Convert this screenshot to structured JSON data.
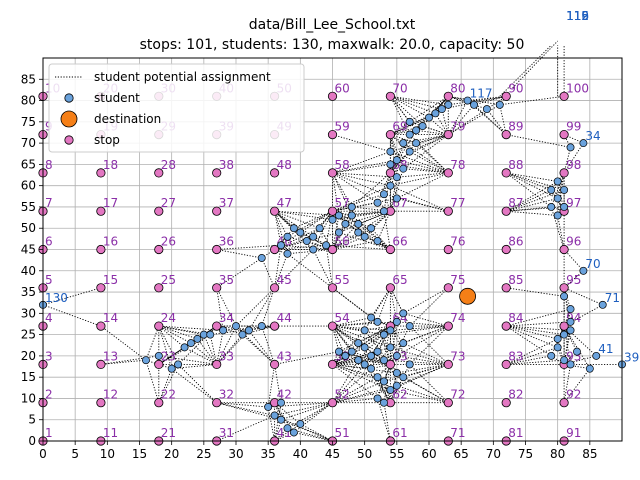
{
  "chart_data": {
    "type": "scatter",
    "title": "data/Bill_Lee_School.txt",
    "subtitle": "stops: 101, students: 130, maxwalk: 20.0, capacity: 50",
    "xlabel": "",
    "ylabel": "",
    "xlim": [
      0,
      90
    ],
    "ylim": [
      0,
      90
    ],
    "xticks": [
      0,
      5,
      10,
      15,
      20,
      25,
      30,
      35,
      40,
      45,
      50,
      55,
      60,
      65,
      70,
      75,
      80,
      85
    ],
    "yticks": [
      0,
      5,
      10,
      15,
      20,
      25,
      30,
      35,
      40,
      45,
      50,
      55,
      60,
      65,
      70,
      75,
      80,
      85
    ],
    "grid": true,
    "legend_position": "top-left",
    "legend": [
      {
        "label": "student potential assignment",
        "kind": "dotted-line",
        "color": "#000000"
      },
      {
        "label": "student",
        "kind": "marker",
        "color": "#6aa2dc"
      },
      {
        "label": "destination",
        "kind": "marker",
        "color": "#f57f17"
      },
      {
        "label": "stop",
        "kind": "marker",
        "color": "#e377c2"
      }
    ],
    "colors": {
      "stop": "#e377c2",
      "student": "#6aa2dc",
      "destination": "#f57f17",
      "stop_label": "#8b2fa8",
      "student_label": "#1f5fbf",
      "edge": "#000000"
    },
    "destination": {
      "x": 66,
      "y": 34
    },
    "stops": [
      {
        "id": "1",
        "x": 0,
        "y": 0
      },
      {
        "id": "2",
        "x": 0,
        "y": 9
      },
      {
        "id": "3",
        "x": 0,
        "y": 18
      },
      {
        "id": "4",
        "x": 0,
        "y": 27
      },
      {
        "id": "5",
        "x": 0,
        "y": 36
      },
      {
        "id": "6",
        "x": 0,
        "y": 45
      },
      {
        "id": "7",
        "x": 0,
        "y": 54
      },
      {
        "id": "8",
        "x": 0,
        "y": 63
      },
      {
        "id": "9",
        "x": 0,
        "y": 72
      },
      {
        "id": "10",
        "x": 0,
        "y": 81
      },
      {
        "id": "11",
        "x": 9,
        "y": 0
      },
      {
        "id": "12",
        "x": 9,
        "y": 9
      },
      {
        "id": "13",
        "x": 9,
        "y": 18
      },
      {
        "id": "14",
        "x": 9,
        "y": 27
      },
      {
        "id": "15",
        "x": 9,
        "y": 36
      },
      {
        "id": "16",
        "x": 9,
        "y": 45
      },
      {
        "id": "17",
        "x": 9,
        "y": 54
      },
      {
        "id": "18",
        "x": 9,
        "y": 63
      },
      {
        "id": "19",
        "x": 9,
        "y": 72
      },
      {
        "id": "20",
        "x": 9,
        "y": 81
      },
      {
        "id": "21",
        "x": 18,
        "y": 0
      },
      {
        "id": "22",
        "x": 18,
        "y": 9
      },
      {
        "id": "23",
        "x": 18,
        "y": 18
      },
      {
        "id": "24",
        "x": 18,
        "y": 27
      },
      {
        "id": "25",
        "x": 18,
        "y": 36
      },
      {
        "id": "26",
        "x": 18,
        "y": 45
      },
      {
        "id": "27",
        "x": 18,
        "y": 54
      },
      {
        "id": "28",
        "x": 18,
        "y": 63
      },
      {
        "id": "29",
        "x": 18,
        "y": 72
      },
      {
        "id": "30",
        "x": 18,
        "y": 81
      },
      {
        "id": "31",
        "x": 27,
        "y": 0
      },
      {
        "id": "32",
        "x": 27,
        "y": 9
      },
      {
        "id": "33",
        "x": 27,
        "y": 18
      },
      {
        "id": "34",
        "x": 27,
        "y": 27
      },
      {
        "id": "35",
        "x": 27,
        "y": 36
      },
      {
        "id": "36",
        "x": 27,
        "y": 45
      },
      {
        "id": "37",
        "x": 27,
        "y": 54
      },
      {
        "id": "38",
        "x": 27,
        "y": 63
      },
      {
        "id": "39",
        "x": 27,
        "y": 72
      },
      {
        "id": "40",
        "x": 27,
        "y": 81
      },
      {
        "id": "41",
        "x": 36,
        "y": 0
      },
      {
        "id": "42",
        "x": 36,
        "y": 9
      },
      {
        "id": "43",
        "x": 36,
        "y": 18
      },
      {
        "id": "44",
        "x": 36,
        "y": 27
      },
      {
        "id": "45",
        "x": 36,
        "y": 36
      },
      {
        "id": "46",
        "x": 36,
        "y": 45
      },
      {
        "id": "47",
        "x": 36,
        "y": 54
      },
      {
        "id": "48",
        "x": 36,
        "y": 63
      },
      {
        "id": "49",
        "x": 36,
        "y": 72
      },
      {
        "id": "50",
        "x": 36,
        "y": 81
      },
      {
        "id": "51",
        "x": 45,
        "y": 0
      },
      {
        "id": "52",
        "x": 45,
        "y": 9
      },
      {
        "id": "53",
        "x": 45,
        "y": 18
      },
      {
        "id": "54",
        "x": 45,
        "y": 27
      },
      {
        "id": "55",
        "x": 45,
        "y": 36
      },
      {
        "id": "56",
        "x": 45,
        "y": 45
      },
      {
        "id": "57",
        "x": 45,
        "y": 54
      },
      {
        "id": "58",
        "x": 45,
        "y": 63
      },
      {
        "id": "59",
        "x": 45,
        "y": 72
      },
      {
        "id": "60",
        "x": 45,
        "y": 81
      },
      {
        "id": "61",
        "x": 54,
        "y": 0
      },
      {
        "id": "62",
        "x": 54,
        "y": 9
      },
      {
        "id": "63",
        "x": 54,
        "y": 18
      },
      {
        "id": "64",
        "x": 54,
        "y": 27
      },
      {
        "id": "65",
        "x": 54,
        "y": 36
      },
      {
        "id": "66",
        "x": 54,
        "y": 45
      },
      {
        "id": "67",
        "x": 54,
        "y": 54
      },
      {
        "id": "68",
        "x": 54,
        "y": 63
      },
      {
        "id": "69",
        "x": 54,
        "y": 72
      },
      {
        "id": "70",
        "x": 54,
        "y": 81
      },
      {
        "id": "71",
        "x": 63,
        "y": 0
      },
      {
        "id": "72",
        "x": 63,
        "y": 9
      },
      {
        "id": "73",
        "x": 63,
        "y": 18
      },
      {
        "id": "74",
        "x": 63,
        "y": 27
      },
      {
        "id": "75",
        "x": 63,
        "y": 36
      },
      {
        "id": "76",
        "x": 63,
        "y": 45
      },
      {
        "id": "77",
        "x": 63,
        "y": 54
      },
      {
        "id": "78",
        "x": 63,
        "y": 63
      },
      {
        "id": "79",
        "x": 63,
        "y": 72
      },
      {
        "id": "80",
        "x": 63,
        "y": 81
      },
      {
        "id": "81",
        "x": 72,
        "y": 0
      },
      {
        "id": "82",
        "x": 72,
        "y": 9
      },
      {
        "id": "83",
        "x": 72,
        "y": 18
      },
      {
        "id": "84",
        "x": 72,
        "y": 27
      },
      {
        "id": "85",
        "x": 72,
        "y": 36
      },
      {
        "id": "86",
        "x": 72,
        "y": 45
      },
      {
        "id": "87",
        "x": 72,
        "y": 54
      },
      {
        "id": "88",
        "x": 72,
        "y": 63
      },
      {
        "id": "89",
        "x": 72,
        "y": 72
      },
      {
        "id": "90",
        "x": 72,
        "y": 81
      },
      {
        "id": "91",
        "x": 81,
        "y": 0
      },
      {
        "id": "92",
        "x": 81,
        "y": 9
      },
      {
        "id": "93",
        "x": 81,
        "y": 18
      },
      {
        "id": "94",
        "x": 81,
        "y": 27
      },
      {
        "id": "95",
        "x": 81,
        "y": 36
      },
      {
        "id": "96",
        "x": 81,
        "y": 45
      },
      {
        "id": "97",
        "x": 81,
        "y": 54
      },
      {
        "id": "98",
        "x": 81,
        "y": 63
      },
      {
        "id": "99",
        "x": 81,
        "y": 72
      },
      {
        "id": "100",
        "x": 81,
        "y": 81
      }
    ],
    "students": [
      {
        "id": "130",
        "x": 0,
        "y": 32
      },
      {
        "id": "",
        "x": 16,
        "y": 19
      },
      {
        "id": "",
        "x": 18,
        "y": 20
      },
      {
        "id": "",
        "x": 20,
        "y": 17
      },
      {
        "id": "",
        "x": 21,
        "y": 18
      },
      {
        "id": "",
        "x": 22,
        "y": 22
      },
      {
        "id": "",
        "x": 23,
        "y": 23
      },
      {
        "id": "",
        "x": 24,
        "y": 24
      },
      {
        "id": "",
        "x": 25,
        "y": 25
      },
      {
        "id": "",
        "x": 26,
        "y": 25
      },
      {
        "id": "",
        "x": 28,
        "y": 26
      },
      {
        "id": "",
        "x": 30,
        "y": 27
      },
      {
        "id": "",
        "x": 31,
        "y": 25
      },
      {
        "id": "",
        "x": 32,
        "y": 26
      },
      {
        "id": "",
        "x": 34,
        "y": 27
      },
      {
        "id": "",
        "x": 35,
        "y": 8
      },
      {
        "id": "",
        "x": 36,
        "y": 6
      },
      {
        "id": "",
        "x": 37,
        "y": 5
      },
      {
        "id": "",
        "x": 38,
        "y": 3
      },
      {
        "id": "",
        "x": 39,
        "y": 2
      },
      {
        "id": "",
        "x": 40,
        "y": 4
      },
      {
        "id": "",
        "x": 37,
        "y": 9
      },
      {
        "id": "",
        "x": 34,
        "y": 43
      },
      {
        "id": "",
        "x": 37,
        "y": 46
      },
      {
        "id": "",
        "x": 38,
        "y": 48
      },
      {
        "id": "",
        "x": 39,
        "y": 50
      },
      {
        "id": "",
        "x": 40,
        "y": 49
      },
      {
        "id": "",
        "x": 41,
        "y": 47
      },
      {
        "id": "",
        "x": 42,
        "y": 48
      },
      {
        "id": "",
        "x": 43,
        "y": 50
      },
      {
        "id": "",
        "x": 45,
        "y": 52
      },
      {
        "id": "",
        "x": 46,
        "y": 53
      },
      {
        "id": "",
        "x": 47,
        "y": 51
      },
      {
        "id": "",
        "x": 48,
        "y": 55
      },
      {
        "id": "",
        "x": 49,
        "y": 49
      },
      {
        "id": "",
        "x": 50,
        "y": 48
      },
      {
        "id": "",
        "x": 51,
        "y": 50
      },
      {
        "id": "",
        "x": 52,
        "y": 47
      },
      {
        "id": "",
        "x": 52,
        "y": 56
      },
      {
        "id": "",
        "x": 53,
        "y": 58
      },
      {
        "id": "",
        "x": 54,
        "y": 60
      },
      {
        "id": "",
        "x": 55,
        "y": 62
      },
      {
        "id": "",
        "x": 56,
        "y": 64
      },
      {
        "id": "",
        "x": 55,
        "y": 66
      },
      {
        "id": "",
        "x": 54,
        "y": 68
      },
      {
        "id": "",
        "x": 56,
        "y": 70
      },
      {
        "id": "",
        "x": 57,
        "y": 72
      },
      {
        "id": "",
        "x": 58,
        "y": 73
      },
      {
        "id": "",
        "x": 59,
        "y": 74
      },
      {
        "id": "",
        "x": 60,
        "y": 76
      },
      {
        "id": "",
        "x": 61,
        "y": 77
      },
      {
        "id": "",
        "x": 62,
        "y": 78
      },
      {
        "id": "",
        "x": 63,
        "y": 79
      },
      {
        "id": "117",
        "x": 66,
        "y": 80
      },
      {
        "id": "",
        "x": 67,
        "y": 79
      },
      {
        "id": "",
        "x": 69,
        "y": 78
      },
      {
        "id": "",
        "x": 71,
        "y": 79
      },
      {
        "id": "",
        "x": 47,
        "y": 20
      },
      {
        "id": "",
        "x": 48,
        "y": 21
      },
      {
        "id": "",
        "x": 49,
        "y": 19
      },
      {
        "id": "",
        "x": 50,
        "y": 22
      },
      {
        "id": "",
        "x": 51,
        "y": 20
      },
      {
        "id": "",
        "x": 52,
        "y": 21
      },
      {
        "id": "",
        "x": 53,
        "y": 19
      },
      {
        "id": "",
        "x": 54,
        "y": 22
      },
      {
        "id": "",
        "x": 55,
        "y": 20
      },
      {
        "id": "",
        "x": 50,
        "y": 18
      },
      {
        "id": "",
        "x": 51,
        "y": 17
      },
      {
        "id": "",
        "x": 52,
        "y": 15
      },
      {
        "id": "",
        "x": 53,
        "y": 14
      },
      {
        "id": "",
        "x": 54,
        "y": 12
      },
      {
        "id": "",
        "x": 55,
        "y": 13
      },
      {
        "id": "",
        "x": 56,
        "y": 15
      },
      {
        "id": "",
        "x": 52,
        "y": 10
      },
      {
        "id": "",
        "x": 53,
        "y": 25
      },
      {
        "id": "",
        "x": 54,
        "y": 26
      },
      {
        "id": "",
        "x": 55,
        "y": 28
      },
      {
        "id": "",
        "x": 56,
        "y": 30
      },
      {
        "id": "",
        "x": 57,
        "y": 27
      },
      {
        "id": "",
        "x": 56,
        "y": 23
      },
      {
        "id": "",
        "x": 49,
        "y": 23
      },
      {
        "id": "",
        "x": 57,
        "y": 18
      },
      {
        "id": "",
        "x": 46,
        "y": 21
      },
      {
        "id": "",
        "x": 50,
        "y": 26
      },
      {
        "id": "",
        "x": 52,
        "y": 28
      },
      {
        "id": "",
        "x": 79,
        "y": 20
      },
      {
        "id": "",
        "x": 80,
        "y": 22
      },
      {
        "id": "",
        "x": 80,
        "y": 24
      },
      {
        "id": "",
        "x": 81,
        "y": 25
      },
      {
        "id": "",
        "x": 82,
        "y": 26
      },
      {
        "id": "",
        "x": 82,
        "y": 28
      },
      {
        "id": "",
        "x": 81,
        "y": 19
      },
      {
        "id": "",
        "x": 82,
        "y": 18
      },
      {
        "id": "",
        "x": 83,
        "y": 21
      },
      {
        "id": "",
        "x": 85,
        "y": 17
      },
      {
        "id": "41",
        "x": 86,
        "y": 20
      },
      {
        "id": "39",
        "x": 90,
        "y": 18
      },
      {
        "id": "",
        "x": 79,
        "y": 55
      },
      {
        "id": "",
        "x": 80,
        "y": 57
      },
      {
        "id": "",
        "x": 81,
        "y": 59
      },
      {
        "id": "",
        "x": 79,
        "y": 59
      },
      {
        "id": "",
        "x": 80,
        "y": 61
      },
      {
        "id": "",
        "x": 81,
        "y": 55
      },
      {
        "id": "",
        "x": 80,
        "y": 53
      },
      {
        "id": "",
        "x": 82,
        "y": 69
      },
      {
        "id": "34",
        "x": 84,
        "y": 70
      },
      {
        "id": "70",
        "x": 84,
        "y": 40
      },
      {
        "id": "",
        "x": 81,
        "y": 34
      },
      {
        "id": "71",
        "x": 87,
        "y": 32
      },
      {
        "id": "",
        "x": 82,
        "y": 31
      },
      {
        "id": "",
        "x": 48,
        "y": 53
      },
      {
        "id": "",
        "x": 49,
        "y": 51
      },
      {
        "id": "",
        "x": 46,
        "y": 49
      },
      {
        "id": "",
        "x": 44,
        "y": 46
      },
      {
        "id": "",
        "x": 42,
        "y": 45
      },
      {
        "id": "",
        "x": 53,
        "y": 54
      },
      {
        "id": "",
        "x": 55,
        "y": 57
      },
      {
        "id": "",
        "x": 54,
        "y": 65
      },
      {
        "id": "",
        "x": 57,
        "y": 68
      },
      {
        "id": "",
        "x": 58,
        "y": 70
      },
      {
        "id": "",
        "x": 38,
        "y": 44
      },
      {
        "id": "",
        "x": 53,
        "y": 9
      },
      {
        "id": "",
        "x": 51,
        "y": 29
      },
      {
        "id": "",
        "x": 55,
        "y": 16
      },
      {
        "id": "",
        "x": 57,
        "y": 75
      }
    ],
    "offchart_labels": [
      {
        "text": "119",
        "x": 81,
        "y": 99
      },
      {
        "text": "115",
        "x": 81,
        "y": 99.2
      },
      {
        "text": "116",
        "x": 81,
        "y": 99.4
      },
      {
        "text": "112",
        "x": 81,
        "y": 99.6
      }
    ],
    "offchart_edges": [
      {
        "x1": 73,
        "y1": 83,
        "x2": 80,
        "y2": 94
      },
      {
        "x1": 71,
        "y1": 81,
        "x2": 79,
        "y2": 93
      },
      {
        "x1": 81,
        "y1": 80,
        "x2": 81,
        "y2": 93
      },
      {
        "x1": 80,
        "y1": 81,
        "x2": 80,
        "y2": 93
      }
    ]
  }
}
